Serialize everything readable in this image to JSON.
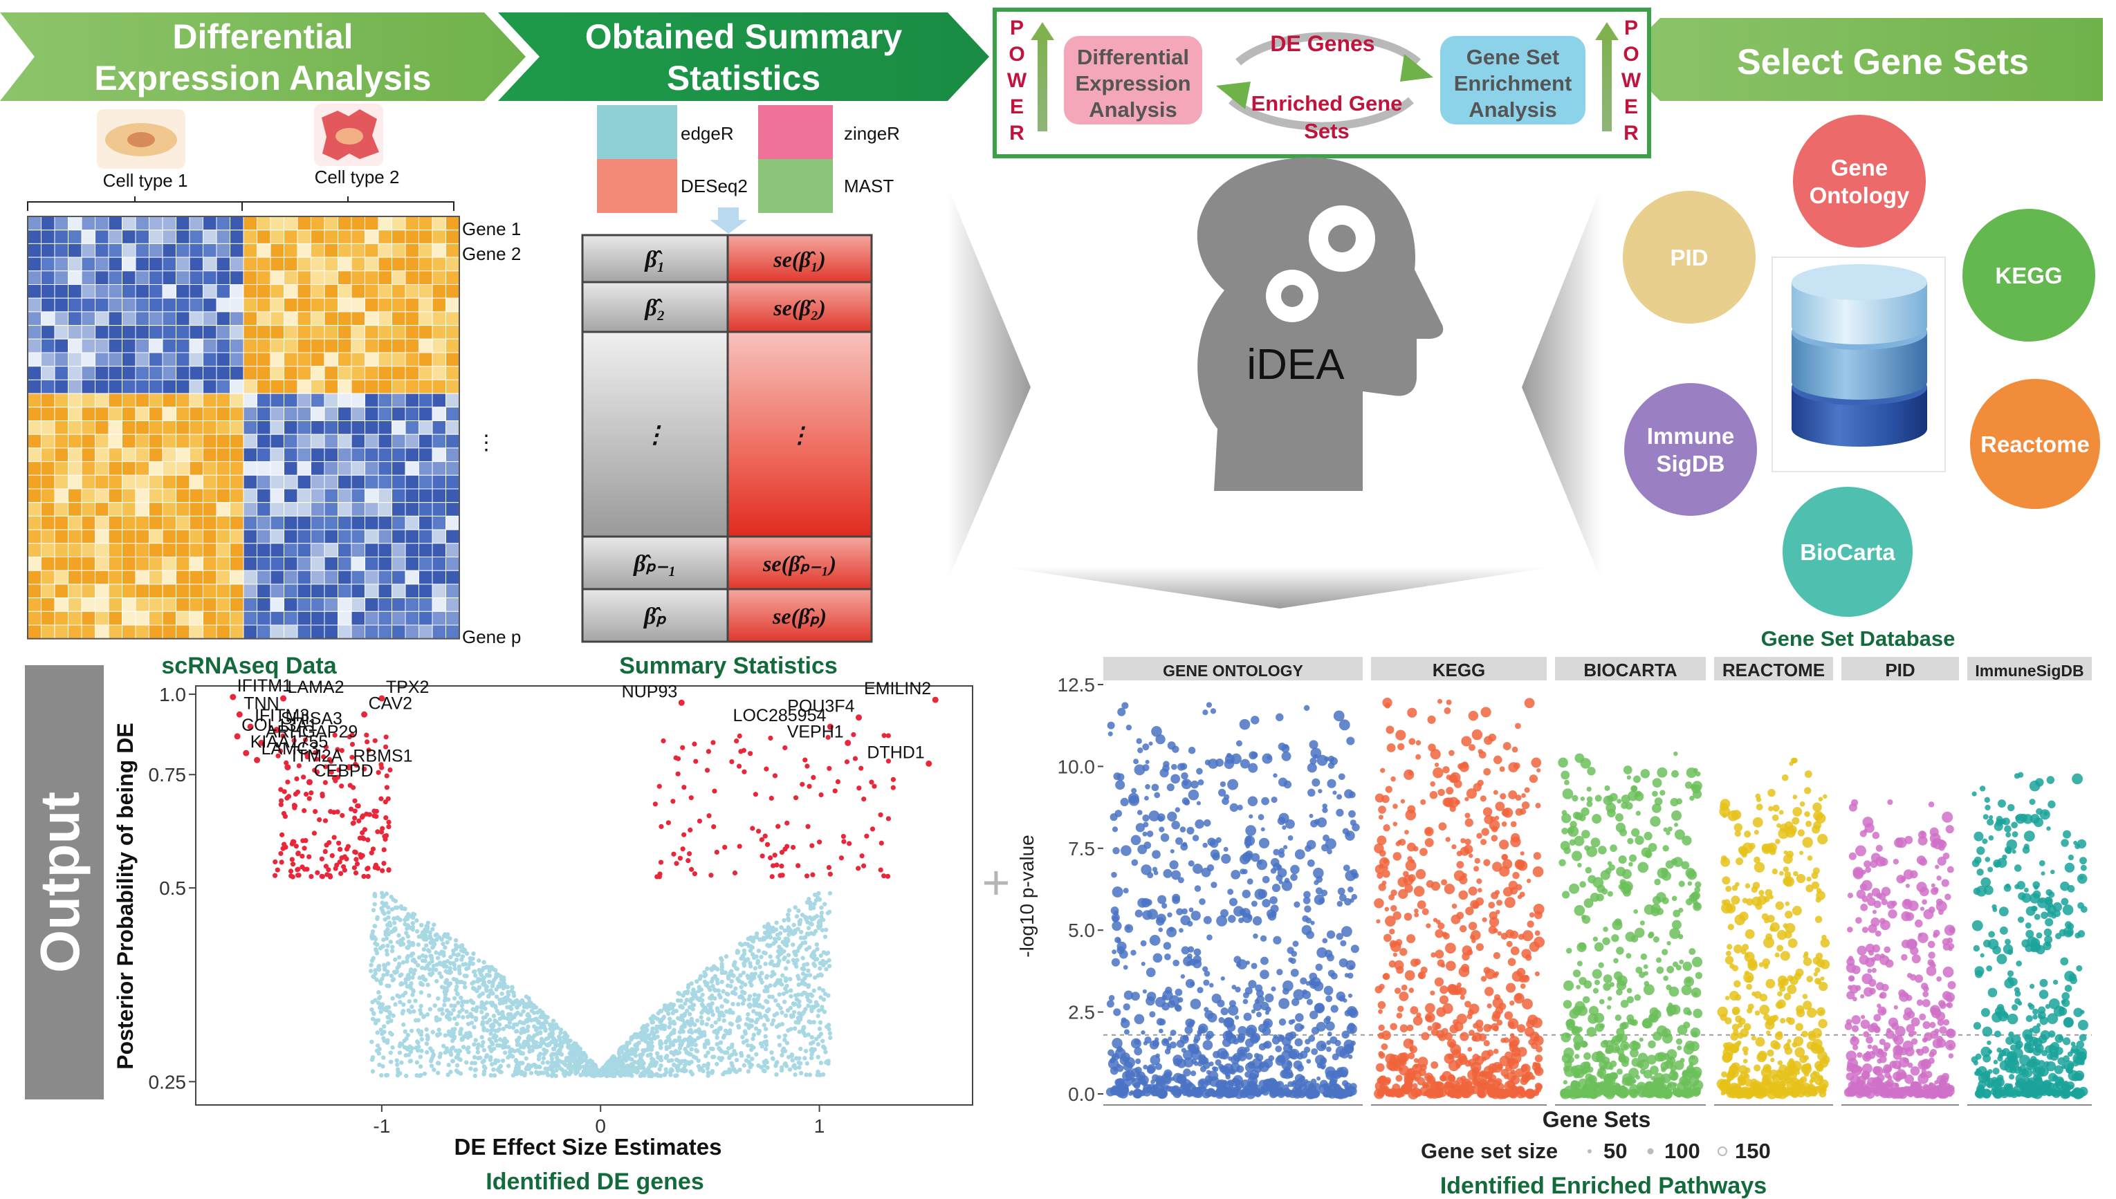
{
  "banners": {
    "de_line1": "Differential",
    "de_line2": "Expression Analysis",
    "summary_line1": "Obtained Summary",
    "summary_line2": "Statistics",
    "select": "Select Gene Sets"
  },
  "power_box": {
    "power_letters": [
      "P",
      "O",
      "W",
      "E",
      "R"
    ],
    "left_box": [
      "Differential",
      "Expression",
      "Analysis"
    ],
    "top_label": "DE Genes",
    "bottom_label": [
      "Enriched Gene",
      "Sets"
    ],
    "right_box": [
      "Gene Set",
      "Enrichment",
      "Analysis"
    ]
  },
  "scrna": {
    "cell_type_1": "Cell type 1",
    "cell_type_2": "Cell type 2",
    "gene1": "Gene 1",
    "gene2": "Gene 2",
    "genep": "Gene p",
    "dots": "⋮",
    "caption": "scRNAseq Data"
  },
  "summary": {
    "methods": [
      "edgeR",
      "DESeq2",
      "zingeR",
      "MAST"
    ],
    "rows": [
      {
        "beta": "β̂₁",
        "se": "se(β̂₁)"
      },
      {
        "beta": "β̂₂",
        "se": "se(β̂₂)"
      },
      {
        "beta": "⋮",
        "se": "⋮"
      },
      {
        "beta": "β̂ₚ₋₁",
        "se": "se(β̂ₚ₋₁)"
      },
      {
        "beta": "β̂ₚ",
        "se": "se(β̂ₚ)"
      }
    ],
    "caption": "Summary Statistics"
  },
  "center": {
    "label": "iDEA"
  },
  "database": {
    "items": [
      {
        "name": "Gene Ontology",
        "color": "#ec6a6a"
      },
      {
        "name": "PID",
        "color": "#e8cf8e"
      },
      {
        "name": "KEGG",
        "color": "#63b84f"
      },
      {
        "name": "Immune SigDB",
        "color": "#9a80c3"
      },
      {
        "name": "Reactome",
        "color": "#f08c3a"
      },
      {
        "name": "BioCarta",
        "color": "#4fc0b0"
      }
    ],
    "caption": "Gene Set Database"
  },
  "output": {
    "label": "Output"
  },
  "volcano": {
    "ylabel": "Posterior Probability of being DE",
    "xlabel": "DE Effect Size Estimates",
    "caption": "Identified DE genes",
    "labels": [
      "IFITM1",
      "LAMA2",
      "TPX2",
      "TNN",
      "IFITM3",
      "CAV2",
      "SHISA3",
      "COL13A1",
      "ARHGAP29",
      "KIAA1755",
      "LAMC3",
      "ITM2A",
      "RBMS1",
      "CEBPD",
      "NUP93",
      "EMILIN2",
      "LOC285954",
      "POU3F4",
      "VEPH1",
      "DTHD1"
    ]
  },
  "manhattan": {
    "ylabel": "-log10 p-value",
    "xlabel": "Gene Sets",
    "caption": "Identified Enriched Pathways",
    "size_legend": {
      "title": "Gene set size",
      "values": [
        "50",
        "100",
        "150"
      ]
    },
    "plus": "+"
  },
  "chart_data": [
    {
      "type": "scatter",
      "title": "",
      "xlabel": "DE Effect Size Estimates",
      "ylabel": "Posterior Probability of being DE",
      "x_ticks": [
        -1,
        0,
        1
      ],
      "y_ticks": [
        0.25,
        0.5,
        0.75,
        1.0
      ],
      "xlim": [
        -1.85,
        1.7
      ],
      "ylim": [
        0.23,
        1.03
      ],
      "y_scale": "log",
      "highlighted_genes": [
        {
          "name": "IFITM1",
          "x": -1.68,
          "y": 0.99
        },
        {
          "name": "LAMA2",
          "x": -1.45,
          "y": 0.985
        },
        {
          "name": "TPX2",
          "x": -1.0,
          "y": 0.985
        },
        {
          "name": "TNN",
          "x": -1.65,
          "y": 0.93
        },
        {
          "name": "IFITM3",
          "x": -1.6,
          "y": 0.89
        },
        {
          "name": "CAV2",
          "x": -1.08,
          "y": 0.93
        },
        {
          "name": "SHISA3",
          "x": -1.48,
          "y": 0.88
        },
        {
          "name": "COL13A1",
          "x": -1.66,
          "y": 0.86
        },
        {
          "name": "ARHGAP29",
          "x": -1.55,
          "y": 0.84
        },
        {
          "name": "KIAA1755",
          "x": -1.62,
          "y": 0.81
        },
        {
          "name": "LAMC3",
          "x": -1.57,
          "y": 0.79
        },
        {
          "name": "ITM2A",
          "x": -1.43,
          "y": 0.77
        },
        {
          "name": "RBMS1",
          "x": -1.15,
          "y": 0.77
        },
        {
          "name": "CEBPD",
          "x": -1.33,
          "y": 0.73
        },
        {
          "name": "NUP93",
          "x": 0.37,
          "y": 0.97
        },
        {
          "name": "EMILIN2",
          "x": 1.53,
          "y": 0.98
        },
        {
          "name": "LOC285954",
          "x": 1.05,
          "y": 0.89
        },
        {
          "name": "POU3F4",
          "x": 1.18,
          "y": 0.92
        },
        {
          "name": "VEPH1",
          "x": 1.13,
          "y": 0.84
        },
        {
          "name": "DTHD1",
          "x": 1.5,
          "y": 0.78
        }
      ],
      "colors": {
        "de": "#e8283a",
        "non_de": "#a8d8e3"
      }
    },
    {
      "type": "scatter",
      "title": "",
      "xlabel": "Gene Sets",
      "ylabel": "-log10 p-value",
      "y_ticks": [
        0.0,
        2.5,
        5.0,
        7.5,
        10.0,
        12.5
      ],
      "ylim": [
        0,
        12.5
      ],
      "threshold": 1.8,
      "panels": [
        {
          "name": "GENE ONTOLOGY",
          "color": "#4a73c4",
          "max": 12
        },
        {
          "name": "KEGG",
          "color": "#f0643c",
          "max": 12
        },
        {
          "name": "BIOCARTA",
          "color": "#6cc05a",
          "max": 11
        },
        {
          "name": "REACTOME",
          "color": "#e5c21a",
          "max": 10.5
        },
        {
          "name": "PID",
          "color": "#d070c8",
          "max": 9
        },
        {
          "name": "ImmuneSigDB",
          "color": "#1aa39a",
          "max": 10
        }
      ]
    }
  ]
}
